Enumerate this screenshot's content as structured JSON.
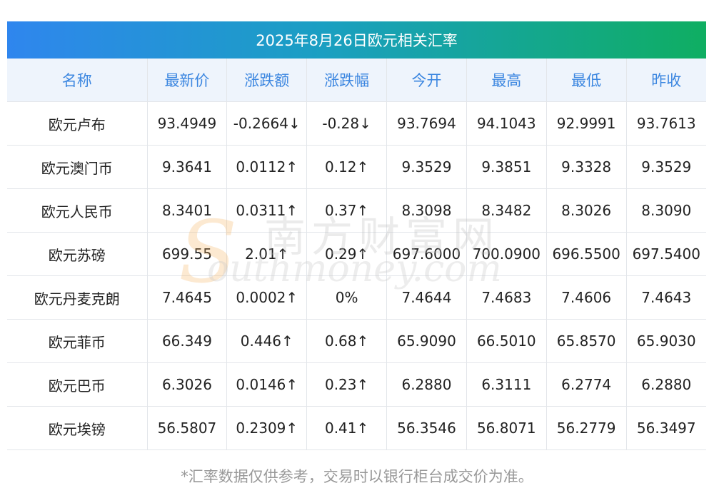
{
  "title": "2025年8月26日欧元相关汇率",
  "headers": [
    "名称",
    "最新价",
    "涨跌额",
    "涨跌幅",
    "今开",
    "最高",
    "最低",
    "昨收"
  ],
  "rows": [
    {
      "name": "欧元卢布",
      "latest": "93.4949",
      "change": "-0.2664↓",
      "pct": "-0.28↓",
      "open": "93.7694",
      "high": "94.1043",
      "low": "92.9991",
      "prev_close": "93.7613",
      "trend": "down"
    },
    {
      "name": "欧元澳门币",
      "latest": "9.3641",
      "change": "0.0112↑",
      "pct": "0.12↑",
      "open": "9.3529",
      "high": "9.3851",
      "low": "9.3328",
      "prev_close": "9.3529",
      "trend": "up"
    },
    {
      "name": "欧元人民币",
      "latest": "8.3401",
      "change": "0.0311↑",
      "pct": "0.37↑",
      "open": "8.3098",
      "high": "8.3482",
      "low": "8.3026",
      "prev_close": "8.3090",
      "trend": "up"
    },
    {
      "name": "欧元苏磅",
      "latest": "699.55",
      "change": "2.01↑",
      "pct": "0.29↑",
      "open": "697.6000",
      "high": "700.0900",
      "low": "696.5500",
      "prev_close": "697.5400",
      "trend": "up"
    },
    {
      "name": "欧元丹麦克朗",
      "latest": "7.4645",
      "change": "0.0002↑",
      "pct": "0%",
      "open": "7.4644",
      "high": "7.4683",
      "low": "7.4606",
      "prev_close": "7.4643",
      "trend": "up",
      "pct_trend": "neutral",
      "latest_trend": "neutral"
    },
    {
      "name": "欧元菲币",
      "latest": "66.349",
      "change": "0.446↑",
      "pct": "0.68↑",
      "open": "65.9090",
      "high": "66.5010",
      "low": "65.8570",
      "prev_close": "65.9030",
      "trend": "up"
    },
    {
      "name": "欧元巴币",
      "latest": "6.3026",
      "change": "0.0146↑",
      "pct": "0.23↑",
      "open": "6.2880",
      "high": "6.3111",
      "low": "6.2774",
      "prev_close": "6.2880",
      "trend": "up"
    },
    {
      "name": "欧元埃镑",
      "latest": "56.5807",
      "change": "0.2309↑",
      "pct": "0.41↑",
      "open": "56.3546",
      "high": "56.8071",
      "low": "56.2779",
      "prev_close": "56.3497",
      "trend": "up"
    }
  ],
  "watermark": {
    "cn": "南方财富网",
    "en": "outhmoney.com",
    "logo_letter": "S"
  },
  "footnote": "*汇率数据仅供参考，交易时以银行柜台成交价为准。",
  "colors": {
    "up": "#e8242a",
    "down": "#1f8f2e",
    "header_text": "#3b86e0",
    "banner_start": "#2f86ee",
    "banner_end": "#0fae62"
  }
}
